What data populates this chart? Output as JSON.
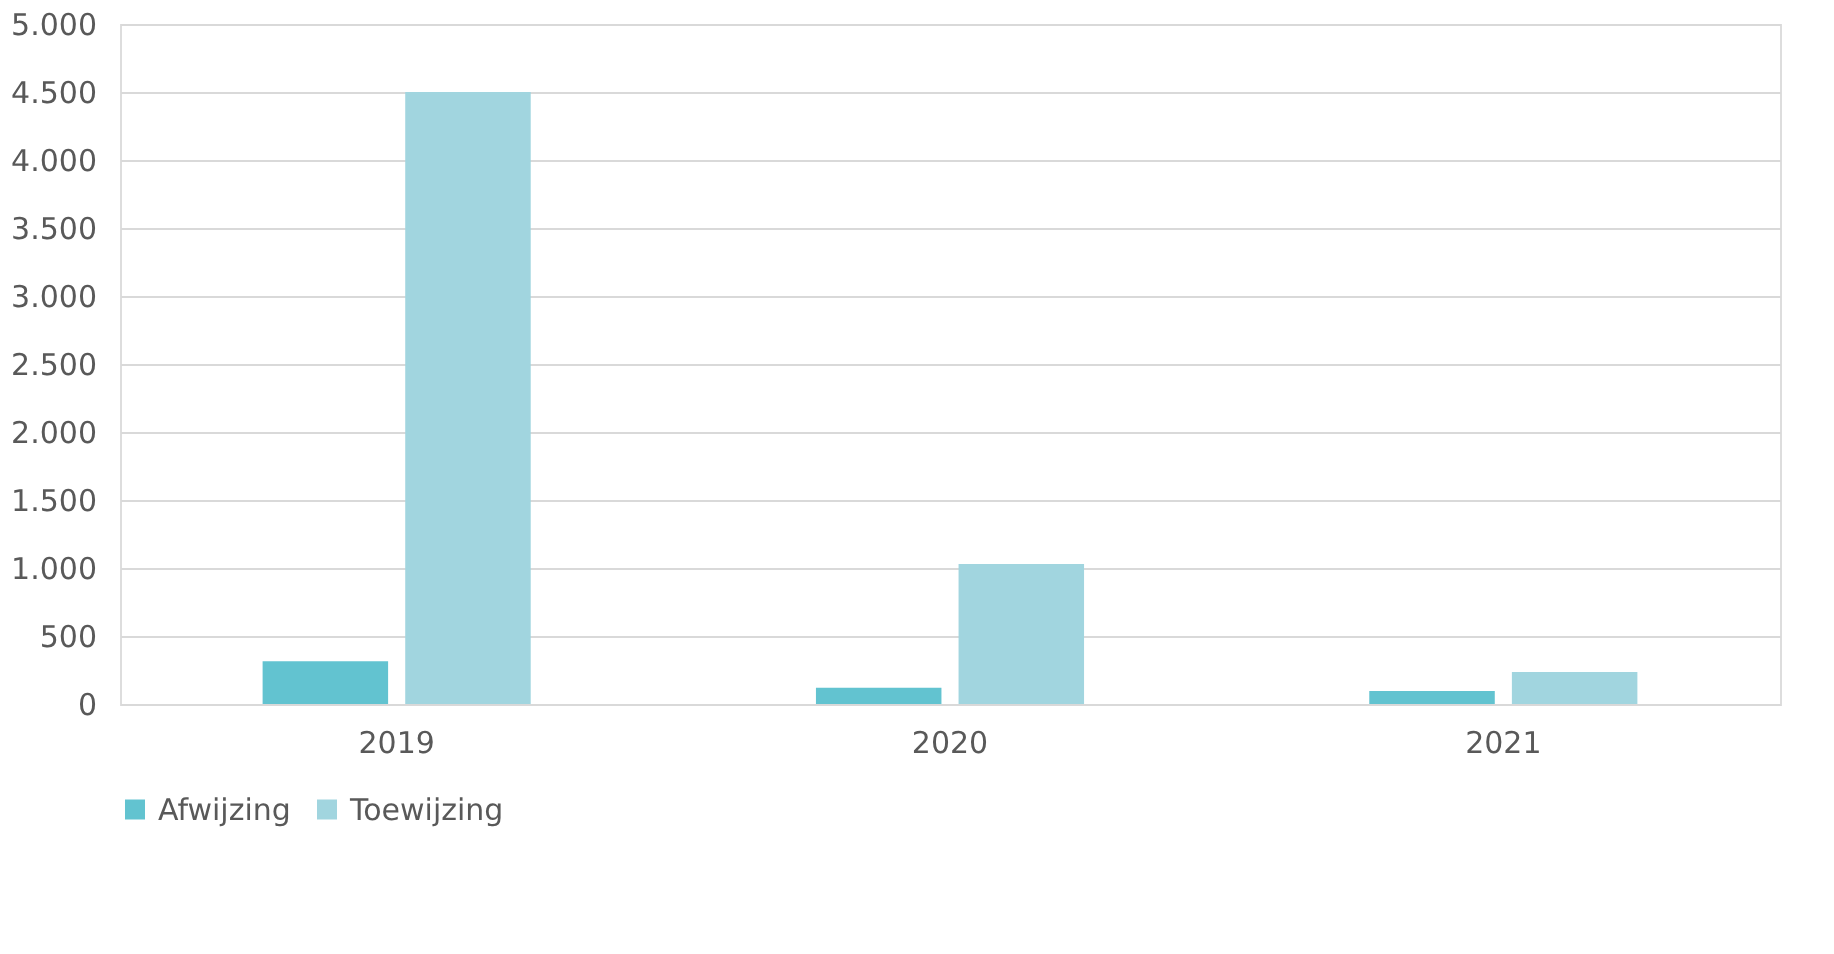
{
  "chart_data": {
    "type": "bar",
    "categories": [
      "2019",
      "2020",
      "2021"
    ],
    "series": [
      {
        "name": "Afwijzing",
        "color": "#62c3d0",
        "values": [
          315,
          120,
          95
        ]
      },
      {
        "name": "Toewijzing",
        "color": "#a1d5df",
        "values": [
          4500,
          1030,
          235
        ]
      }
    ],
    "ylim": [
      0,
      5000
    ],
    "yticks": [
      0,
      500,
      {
        "value": 1000,
        "label": "1.000"
      },
      {
        "value": 1500,
        "label": "1.500"
      },
      {
        "value": 2000,
        "label": "2.000"
      },
      {
        "value": 2500,
        "label": "2.500"
      },
      {
        "value": 3000,
        "label": "3.000"
      },
      {
        "value": 3500,
        "label": "3.500"
      },
      {
        "value": 4000,
        "label": "4.000"
      },
      {
        "value": 4500,
        "label": "4.500"
      },
      {
        "value": 5000,
        "label": "5.000"
      }
    ],
    "grid": "y",
    "legend": "bottom"
  }
}
